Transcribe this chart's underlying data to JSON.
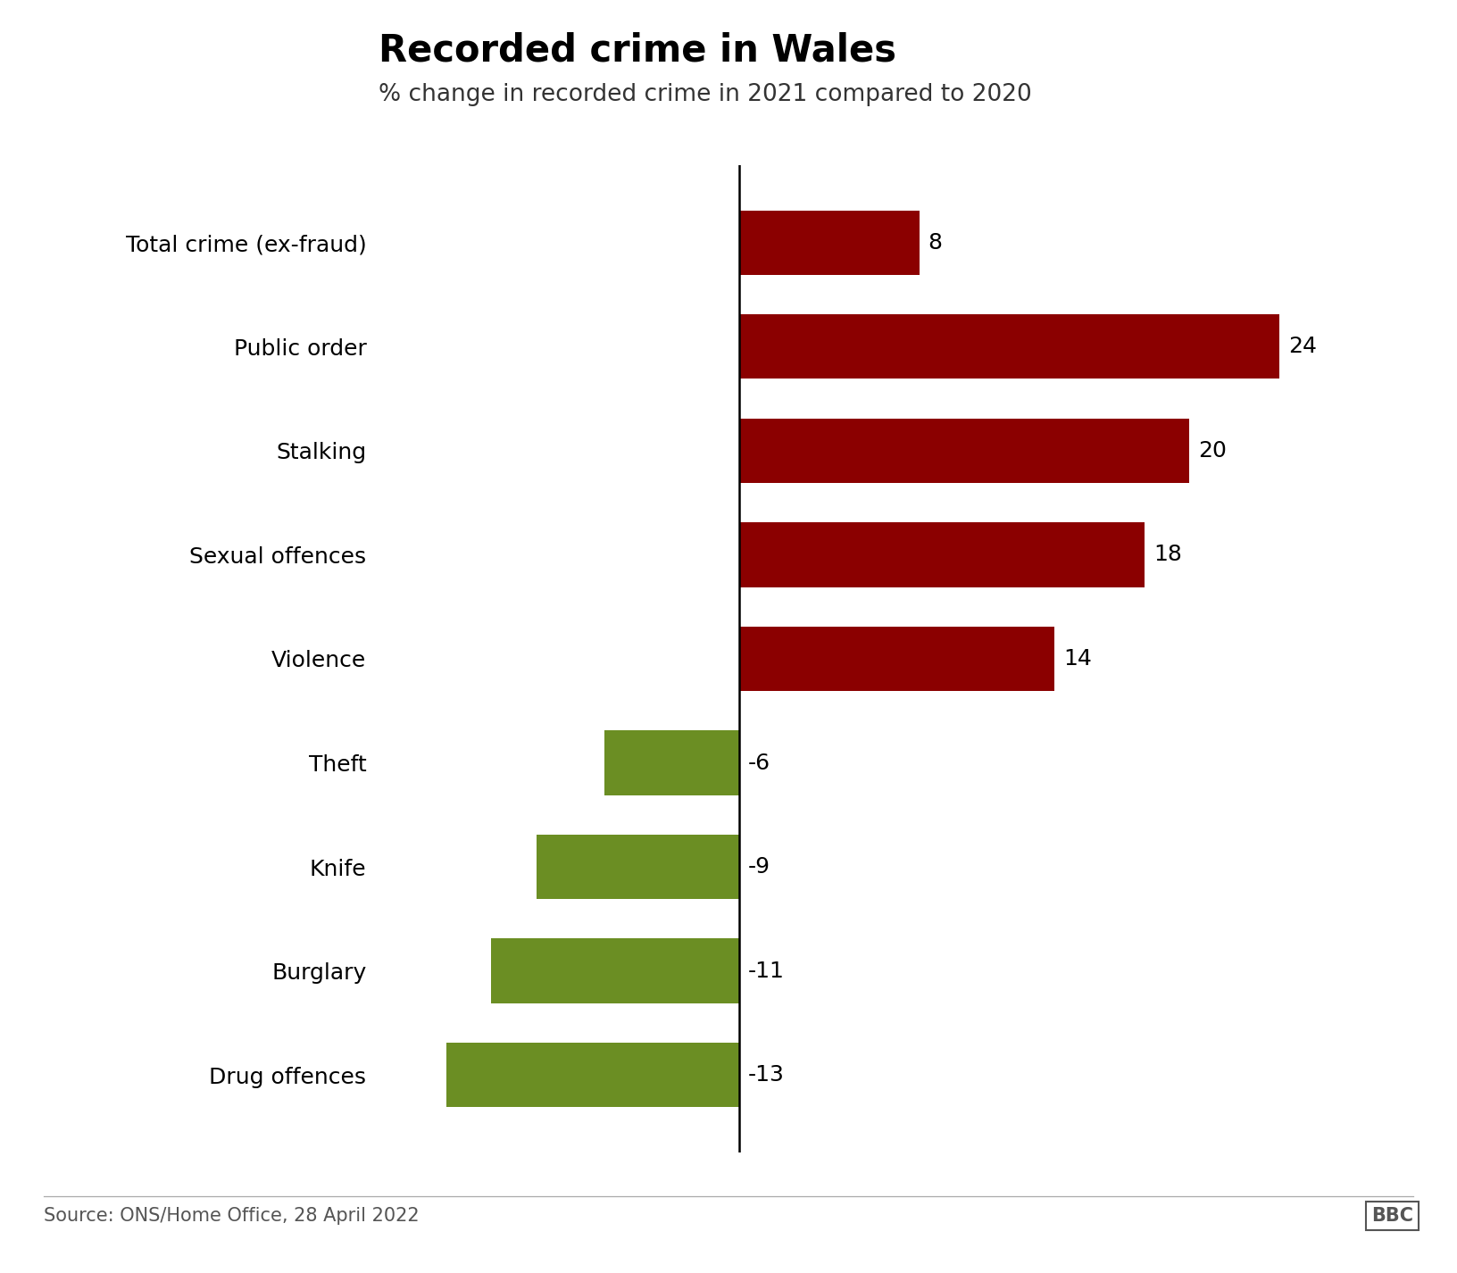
{
  "title": "Recorded crime in Wales",
  "subtitle": "% change in recorded crime in 2021 compared to 2020",
  "source": "Source: ONS/Home Office, 28 April 2022",
  "categories": [
    "Total crime (ex-fraud)",
    "Public order",
    "Stalking",
    "Sexual offences",
    "Violence",
    "Theft",
    "Knife",
    "Burglary",
    "Drug offences"
  ],
  "values": [
    8,
    24,
    20,
    18,
    14,
    -6,
    -9,
    -11,
    -13
  ],
  "positive_color": "#8B0000",
  "negative_color": "#6B8E23",
  "background_color": "#FFFFFF",
  "bar_height": 0.62,
  "xlim": [
    -16,
    28
  ],
  "title_fontsize": 30,
  "subtitle_fontsize": 19,
  "label_fontsize": 18,
  "value_fontsize": 18,
  "source_fontsize": 15
}
